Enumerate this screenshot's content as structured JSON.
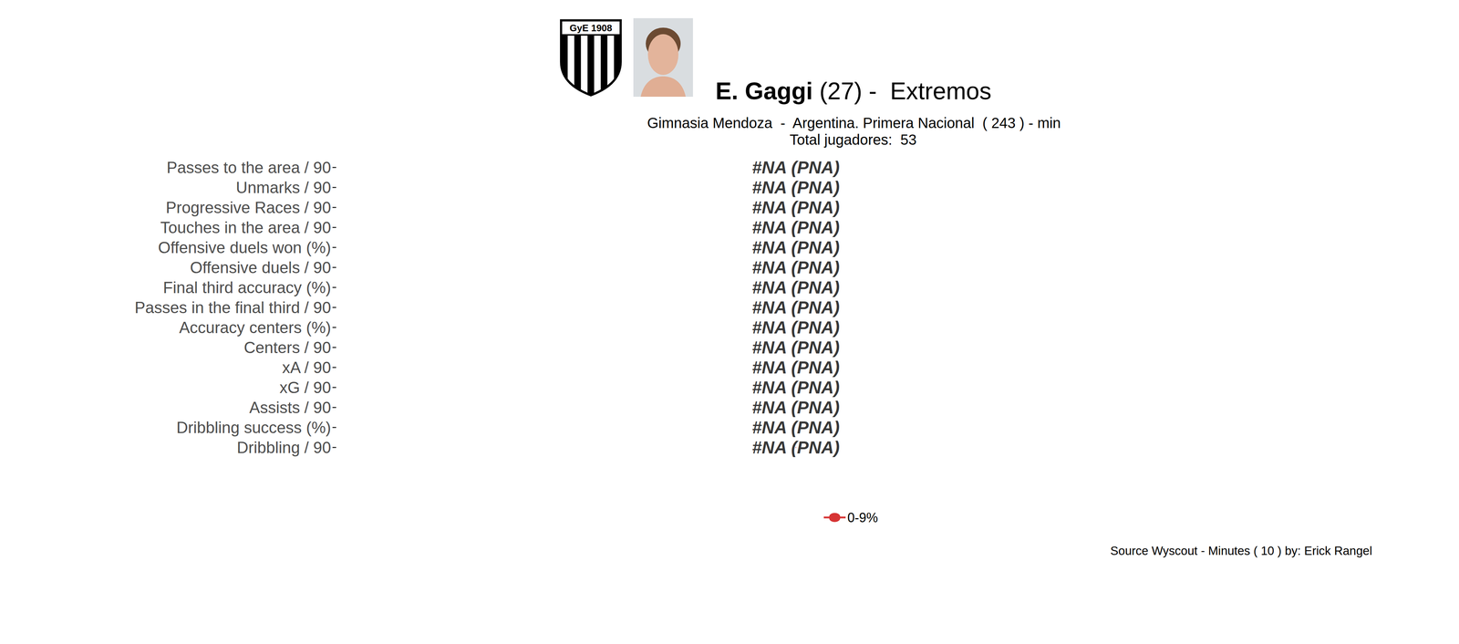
{
  "chart_data": {
    "type": "percentile_bar",
    "title": "E. Gaggi",
    "title_detail": "(27) -  Extremos",
    "subtitle": [
      "Gimnasia Mendoza  -  Argentina. Primera Nacional  ( 243 ) - min",
      "Total jugadores:  53"
    ],
    "logo_text": "GyE 1908",
    "caption": "Source Wyscout - Minutes ( 10 ) by: Erick Rangel",
    "categories": [
      "Passes to the area / 90",
      "Unmarks / 90",
      "Progressive Races / 90",
      "Touches in the area / 90",
      "Offensive duels won (%)",
      "Offensive duels / 90",
      "Final third accuracy (%)",
      "Passes in the final third / 90",
      "Accuracy centers (%)",
      "Centers / 90",
      "xA / 90",
      "xG / 90",
      "Assists / 90",
      "Dribbling success (%)",
      "Dribbling / 90"
    ],
    "series": [
      {
        "name": "0-9%",
        "color": "#cc0000",
        "values": [
          null,
          null,
          null,
          null,
          null,
          null,
          null,
          null,
          null,
          null,
          null,
          null,
          null,
          null,
          null
        ],
        "value_labels": [
          "#NA (PNA)",
          "#NA (PNA)",
          "#NA (PNA)",
          "#NA (PNA)",
          "#NA (PNA)",
          "#NA (PNA)",
          "#NA (PNA)",
          "#NA (PNA)",
          "#NA (PNA)",
          "#NA (PNA)",
          "#NA (PNA)",
          "#NA (PNA)",
          "#NA (PNA)",
          "#NA (PNA)",
          "#NA (PNA)"
        ]
      }
    ],
    "orientation": "horizontal",
    "data_labels": true,
    "tick_labels": "y",
    "legend": "bottom"
  }
}
